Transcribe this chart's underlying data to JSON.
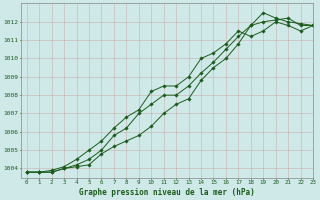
{
  "title": "Graphe pression niveau de la mer (hPa)",
  "bg_color": "#cfe9e9",
  "grid_color": "#b0c8c8",
  "line_color": "#1a5c1a",
  "xlim": [
    -0.5,
    23
  ],
  "ylim": [
    1003.5,
    1013.0
  ],
  "xticks": [
    0,
    1,
    2,
    3,
    4,
    5,
    6,
    7,
    8,
    9,
    10,
    11,
    12,
    13,
    14,
    15,
    16,
    17,
    18,
    19,
    20,
    21,
    22,
    23
  ],
  "yticks": [
    1004,
    1005,
    1006,
    1007,
    1008,
    1009,
    1010,
    1011,
    1012
  ],
  "series": [
    [
      1003.8,
      1003.8,
      1003.8,
      1004.0,
      1004.1,
      1004.2,
      1004.8,
      1005.2,
      1005.5,
      1005.8,
      1006.3,
      1007.0,
      1007.5,
      1007.8,
      1008.8,
      1009.5,
      1010.0,
      1010.8,
      1011.8,
      1012.5,
      1012.2,
      1012.0,
      1011.9,
      1011.8
    ],
    [
      1003.8,
      1003.8,
      1003.8,
      1004.0,
      1004.2,
      1004.5,
      1005.0,
      1005.8,
      1006.2,
      1007.0,
      1007.5,
      1008.0,
      1008.0,
      1008.5,
      1009.2,
      1009.8,
      1010.5,
      1011.2,
      1011.8,
      1012.0,
      1012.1,
      1012.2,
      1011.8,
      1011.8
    ],
    [
      1003.8,
      1003.8,
      1003.9,
      1004.1,
      1004.5,
      1005.0,
      1005.5,
      1006.2,
      1006.8,
      1007.2,
      1008.2,
      1008.5,
      1008.5,
      1009.0,
      1010.0,
      1010.3,
      1010.8,
      1011.5,
      1011.2,
      1011.5,
      1012.0,
      1011.8,
      1011.5,
      1011.8
    ]
  ]
}
